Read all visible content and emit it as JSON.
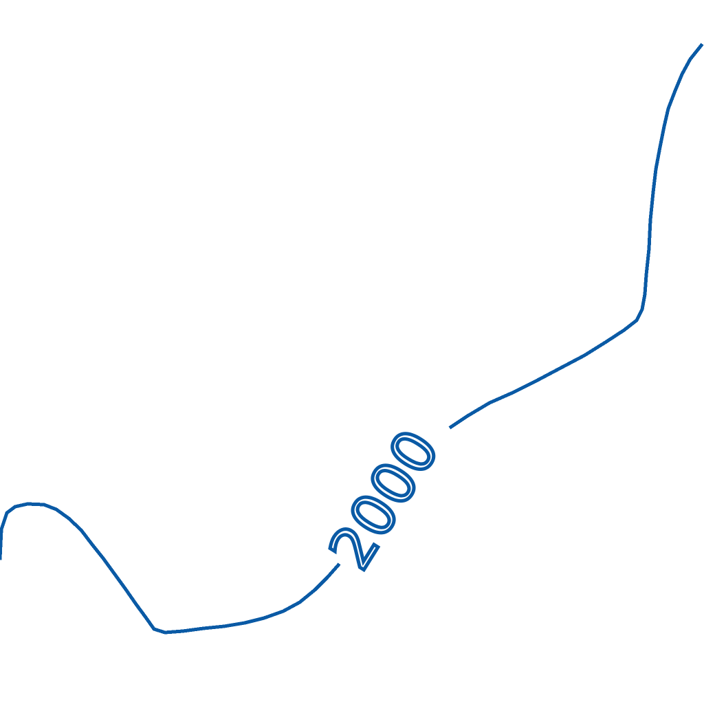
{
  "contour": {
    "label": "2000",
    "line_color": "#0a5aa5",
    "background_color": "#ffffff"
  }
}
